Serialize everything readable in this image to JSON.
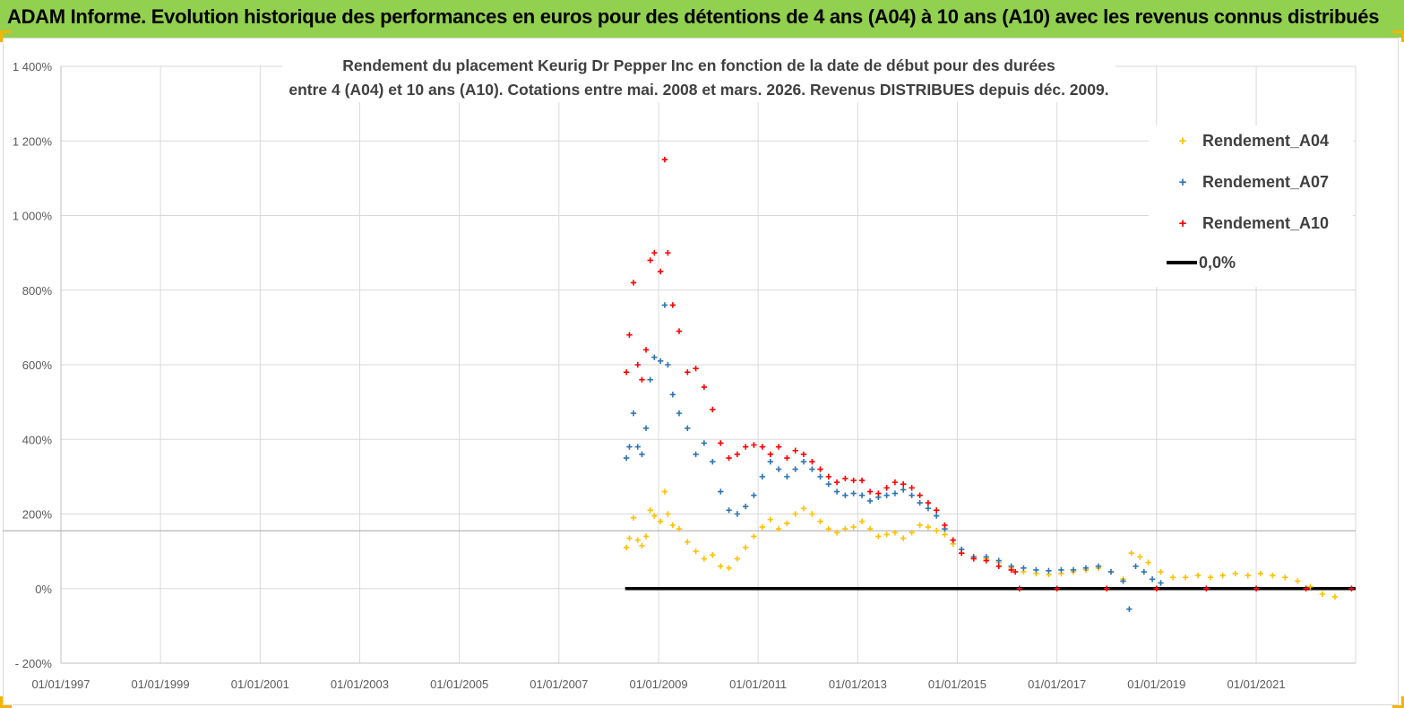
{
  "banner": {
    "title": "ADAM Informe. Evolution historique des performances en euros pour des détentions de 4 ans (A04) à 10 ans (A10) avec les revenus connus distribués"
  },
  "chart_data": {
    "type": "scatter",
    "title_lines": [
      "Rendement du placement Keurig Dr Pepper Inc en fonction de la date de début pour des durées",
      "entre 4 (A04) et 10 ans (A10).  Cotations entre mai. 2008 et mars. 2026. Revenus DISTRIBUES depuis déc. 2009."
    ],
    "xlim": [
      "1997-01-01",
      "2022-12-31"
    ],
    "ylim": [
      -200,
      1400
    ],
    "y_ticks": [
      -200,
      0,
      200,
      400,
      600,
      800,
      1000,
      1200,
      1400
    ],
    "y_tick_labels": [
      "- 200%",
      "0%",
      "200%",
      "400%",
      "600%",
      "800%",
      "1 000%",
      "1 200%",
      "1 400%"
    ],
    "x_ticks": [
      "1997-01-01",
      "1999-01-01",
      "2001-01-01",
      "2003-01-01",
      "2005-01-01",
      "2007-01-01",
      "2009-01-01",
      "2011-01-01",
      "2013-01-01",
      "2015-01-01",
      "2017-01-01",
      "2019-01-01",
      "2021-01-01"
    ],
    "x_tick_labels": [
      "01/01/1997",
      "01/01/1999",
      "01/01/2001",
      "01/01/2003",
      "01/01/2005",
      "01/01/2007",
      "01/01/2009",
      "01/01/2011",
      "01/01/2013",
      "01/01/2015",
      "01/01/2017",
      "01/01/2019",
      "01/01/2021"
    ],
    "gridlines": true,
    "reference_hline": 155,
    "legend_position": "right",
    "series": [
      {
        "name": "Rendement_A04",
        "color": "#ffc000",
        "marker": "+",
        "points": [
          [
            "2008-05-10",
            110
          ],
          [
            "2008-06-01",
            135
          ],
          [
            "2008-07-01",
            190
          ],
          [
            "2008-08-01",
            130
          ],
          [
            "2008-09-01",
            115
          ],
          [
            "2008-10-01",
            140
          ],
          [
            "2008-11-01",
            210
          ],
          [
            "2008-12-01",
            195
          ],
          [
            "2009-01-15",
            180
          ],
          [
            "2009-02-15",
            260
          ],
          [
            "2009-03-10",
            200
          ],
          [
            "2009-04-15",
            170
          ],
          [
            "2009-06-01",
            160
          ],
          [
            "2009-08-01",
            125
          ],
          [
            "2009-10-01",
            100
          ],
          [
            "2009-12-01",
            80
          ],
          [
            "2010-02-01",
            90
          ],
          [
            "2010-04-01",
            60
          ],
          [
            "2010-06-01",
            55
          ],
          [
            "2010-08-01",
            80
          ],
          [
            "2010-10-01",
            110
          ],
          [
            "2010-12-01",
            140
          ],
          [
            "2011-02-01",
            165
          ],
          [
            "2011-04-01",
            185
          ],
          [
            "2011-06-01",
            160
          ],
          [
            "2011-08-01",
            175
          ],
          [
            "2011-10-01",
            200
          ],
          [
            "2011-12-01",
            215
          ],
          [
            "2012-02-01",
            200
          ],
          [
            "2012-04-01",
            180
          ],
          [
            "2012-06-01",
            160
          ],
          [
            "2012-08-01",
            150
          ],
          [
            "2012-10-01",
            160
          ],
          [
            "2012-12-01",
            165
          ],
          [
            "2013-02-01",
            180
          ],
          [
            "2013-04-01",
            160
          ],
          [
            "2013-06-01",
            140
          ],
          [
            "2013-08-01",
            145
          ],
          [
            "2013-10-01",
            150
          ],
          [
            "2013-12-01",
            135
          ],
          [
            "2014-02-01",
            150
          ],
          [
            "2014-04-01",
            170
          ],
          [
            "2014-06-01",
            165
          ],
          [
            "2014-08-01",
            155
          ],
          [
            "2014-10-01",
            145
          ],
          [
            "2014-12-01",
            120
          ],
          [
            "2015-02-01",
            95
          ],
          [
            "2015-05-01",
            85
          ],
          [
            "2015-08-01",
            80
          ],
          [
            "2015-11-01",
            70
          ],
          [
            "2016-02-01",
            55
          ],
          [
            "2016-05-01",
            45
          ],
          [
            "2016-08-01",
            40
          ],
          [
            "2016-11-01",
            38
          ],
          [
            "2017-02-01",
            40
          ],
          [
            "2017-05-01",
            45
          ],
          [
            "2017-08-01",
            50
          ],
          [
            "2017-11-01",
            55
          ],
          [
            "2018-02-01",
            45
          ],
          [
            "2018-05-01",
            25
          ],
          [
            "2018-07-01",
            95
          ],
          [
            "2018-09-01",
            85
          ],
          [
            "2018-11-01",
            70
          ],
          [
            "2019-02-01",
            45
          ],
          [
            "2019-05-01",
            30
          ],
          [
            "2019-08-01",
            30
          ],
          [
            "2019-11-01",
            35
          ],
          [
            "2020-02-01",
            30
          ],
          [
            "2020-05-01",
            35
          ],
          [
            "2020-08-01",
            40
          ],
          [
            "2020-11-01",
            35
          ],
          [
            "2021-02-01",
            40
          ],
          [
            "2021-05-01",
            35
          ],
          [
            "2021-08-01",
            30
          ],
          [
            "2021-11-01",
            20
          ],
          [
            "2022-02-01",
            5
          ],
          [
            "2022-05-01",
            -15
          ],
          [
            "2022-08-01",
            -22
          ]
        ]
      },
      {
        "name": "Rendement_A07",
        "color": "#2e75b6",
        "marker": "+",
        "points": [
          [
            "2008-05-10",
            350
          ],
          [
            "2008-06-01",
            380
          ],
          [
            "2008-07-01",
            470
          ],
          [
            "2008-08-01",
            380
          ],
          [
            "2008-09-01",
            360
          ],
          [
            "2008-10-01",
            430
          ],
          [
            "2008-11-01",
            560
          ],
          [
            "2008-12-01",
            620
          ],
          [
            "2009-01-15",
            610
          ],
          [
            "2009-02-15",
            760
          ],
          [
            "2009-03-10",
            600
          ],
          [
            "2009-04-15",
            520
          ],
          [
            "2009-06-01",
            470
          ],
          [
            "2009-08-01",
            430
          ],
          [
            "2009-10-01",
            360
          ],
          [
            "2009-12-01",
            390
          ],
          [
            "2010-02-01",
            340
          ],
          [
            "2010-04-01",
            260
          ],
          [
            "2010-06-01",
            210
          ],
          [
            "2010-08-01",
            200
          ],
          [
            "2010-10-01",
            220
          ],
          [
            "2010-12-01",
            250
          ],
          [
            "2011-02-01",
            300
          ],
          [
            "2011-04-01",
            340
          ],
          [
            "2011-06-01",
            320
          ],
          [
            "2011-08-01",
            300
          ],
          [
            "2011-10-01",
            320
          ],
          [
            "2011-12-01",
            340
          ],
          [
            "2012-02-01",
            320
          ],
          [
            "2012-04-01",
            300
          ],
          [
            "2012-06-01",
            280
          ],
          [
            "2012-08-01",
            260
          ],
          [
            "2012-10-01",
            250
          ],
          [
            "2012-12-01",
            255
          ],
          [
            "2013-02-01",
            250
          ],
          [
            "2013-04-01",
            235
          ],
          [
            "2013-06-01",
            245
          ],
          [
            "2013-08-01",
            250
          ],
          [
            "2013-10-01",
            255
          ],
          [
            "2013-12-01",
            265
          ],
          [
            "2014-02-01",
            250
          ],
          [
            "2014-04-01",
            230
          ],
          [
            "2014-06-01",
            215
          ],
          [
            "2014-08-01",
            195
          ],
          [
            "2014-10-01",
            160
          ],
          [
            "2014-12-01",
            130
          ],
          [
            "2015-02-01",
            105
          ],
          [
            "2015-05-01",
            85
          ],
          [
            "2015-08-01",
            85
          ],
          [
            "2015-11-01",
            75
          ],
          [
            "2016-02-01",
            60
          ],
          [
            "2016-05-01",
            55
          ],
          [
            "2016-08-01",
            50
          ],
          [
            "2016-11-01",
            48
          ],
          [
            "2017-02-01",
            50
          ],
          [
            "2017-05-01",
            50
          ],
          [
            "2017-08-01",
            55
          ],
          [
            "2017-11-01",
            60
          ],
          [
            "2018-02-01",
            45
          ],
          [
            "2018-05-01",
            20
          ],
          [
            "2018-06-15",
            -55
          ],
          [
            "2018-08-01",
            60
          ],
          [
            "2018-10-01",
            45
          ],
          [
            "2018-12-01",
            25
          ],
          [
            "2019-02-01",
            15
          ]
        ]
      },
      {
        "name": "Rendement_A10",
        "color": "#ff0000",
        "marker": "+",
        "points": [
          [
            "2008-05-10",
            580
          ],
          [
            "2008-06-01",
            680
          ],
          [
            "2008-07-01",
            820
          ],
          [
            "2008-08-01",
            600
          ],
          [
            "2008-09-01",
            560
          ],
          [
            "2008-10-01",
            640
          ],
          [
            "2008-11-01",
            880
          ],
          [
            "2008-12-01",
            900
          ],
          [
            "2009-01-15",
            850
          ],
          [
            "2009-02-15",
            1150
          ],
          [
            "2009-03-10",
            900
          ],
          [
            "2009-04-15",
            760
          ],
          [
            "2009-06-01",
            690
          ],
          [
            "2009-08-01",
            580
          ],
          [
            "2009-10-01",
            590
          ],
          [
            "2009-12-01",
            540
          ],
          [
            "2010-02-01",
            480
          ],
          [
            "2010-04-01",
            390
          ],
          [
            "2010-06-01",
            350
          ],
          [
            "2010-08-01",
            360
          ],
          [
            "2010-10-01",
            380
          ],
          [
            "2010-12-01",
            385
          ],
          [
            "2011-02-01",
            380
          ],
          [
            "2011-04-01",
            360
          ],
          [
            "2011-06-01",
            380
          ],
          [
            "2011-08-01",
            350
          ],
          [
            "2011-10-01",
            370
          ],
          [
            "2011-12-01",
            360
          ],
          [
            "2012-02-01",
            340
          ],
          [
            "2012-04-01",
            320
          ],
          [
            "2012-06-01",
            300
          ],
          [
            "2012-08-01",
            285
          ],
          [
            "2012-10-01",
            295
          ],
          [
            "2012-12-01",
            290
          ],
          [
            "2013-02-01",
            290
          ],
          [
            "2013-04-01",
            260
          ],
          [
            "2013-06-01",
            255
          ],
          [
            "2013-08-01",
            270
          ],
          [
            "2013-10-01",
            285
          ],
          [
            "2013-12-01",
            280
          ],
          [
            "2014-02-01",
            270
          ],
          [
            "2014-04-01",
            250
          ],
          [
            "2014-06-01",
            230
          ],
          [
            "2014-08-01",
            210
          ],
          [
            "2014-10-01",
            170
          ],
          [
            "2014-12-01",
            130
          ],
          [
            "2015-02-01",
            95
          ],
          [
            "2015-05-01",
            80
          ],
          [
            "2015-08-01",
            75
          ],
          [
            "2015-11-01",
            60
          ],
          [
            "2016-02-01",
            50
          ],
          [
            "2016-03-01",
            45
          ],
          [
            "2016-04-01",
            0
          ],
          [
            "2017-01-01",
            0
          ],
          [
            "2018-01-01",
            0
          ],
          [
            "2019-01-01",
            0
          ],
          [
            "2020-01-01",
            0
          ],
          [
            "2021-01-01",
            0
          ],
          [
            "2022-01-01",
            0
          ],
          [
            "2022-12-01",
            0
          ]
        ]
      },
      {
        "name": "0,0%",
        "color": "#000000",
        "marker": "line",
        "points": [
          [
            "2008-05-01",
            0
          ],
          [
            "2022-12-31",
            0
          ]
        ]
      }
    ]
  }
}
